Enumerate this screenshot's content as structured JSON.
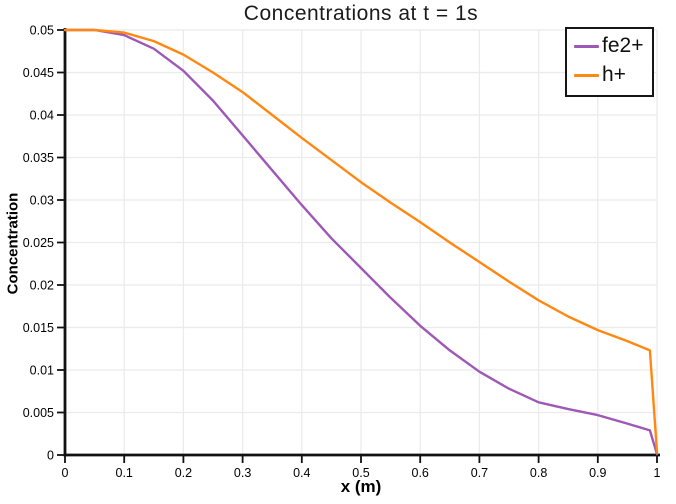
{
  "chart_data": {
    "type": "line",
    "title": "Concentrations at t = 1s",
    "xlabel": "x (m)",
    "ylabel": "Concentration",
    "xlim": [
      0,
      1
    ],
    "ylim": [
      0,
      0.05
    ],
    "grid": true,
    "legend_position": "top-right",
    "background_color": "#ffffff",
    "axis_color": "#111111",
    "grid_color": "#ebebeb",
    "tick_label_color": "#000000",
    "x_ticks": [
      0,
      0.1,
      0.2,
      0.3,
      0.4,
      0.5,
      0.6,
      0.7,
      0.8,
      0.9,
      1
    ],
    "x_tick_labels": [
      "0",
      "0.1",
      "0.2",
      "0.3",
      "0.4",
      "0.5",
      "0.6",
      "0.7",
      "0.8",
      "0.9",
      "1"
    ],
    "y_ticks": [
      0,
      0.005,
      0.01,
      0.015,
      0.02,
      0.025,
      0.03,
      0.035,
      0.04,
      0.045,
      0.05
    ],
    "y_tick_labels": [
      "0",
      "0.005",
      "0.01",
      "0.015",
      "0.02",
      "0.025",
      "0.03",
      "0.035",
      "0.04",
      "0.045",
      "0.05"
    ],
    "x": [
      0,
      0.05,
      0.1,
      0.15,
      0.2,
      0.25,
      0.3,
      0.35,
      0.4,
      0.45,
      0.5,
      0.55,
      0.6,
      0.65,
      0.7,
      0.75,
      0.8,
      0.85,
      0.9,
      0.95,
      0.988,
      1.0
    ],
    "series": [
      {
        "name": "fe2+",
        "color": "#9e58b5",
        "values": [
          0.05,
          0.05,
          0.0494,
          0.0478,
          0.0452,
          0.0417,
          0.0376,
          0.0335,
          0.0294,
          0.0255,
          0.022,
          0.0185,
          0.0152,
          0.0123,
          0.0098,
          0.0078,
          0.0062,
          0.0054,
          0.0047,
          0.0037,
          0.0029,
          0.0001
        ]
      },
      {
        "name": "h+",
        "color": "#ff8812",
        "values": [
          0.05,
          0.05,
          0.0497,
          0.0487,
          0.0471,
          0.045,
          0.0427,
          0.04,
          0.0373,
          0.0347,
          0.0321,
          0.0297,
          0.0274,
          0.025,
          0.0227,
          0.0204,
          0.0182,
          0.0163,
          0.0147,
          0.0134,
          0.0123,
          0.0003
        ]
      }
    ]
  }
}
